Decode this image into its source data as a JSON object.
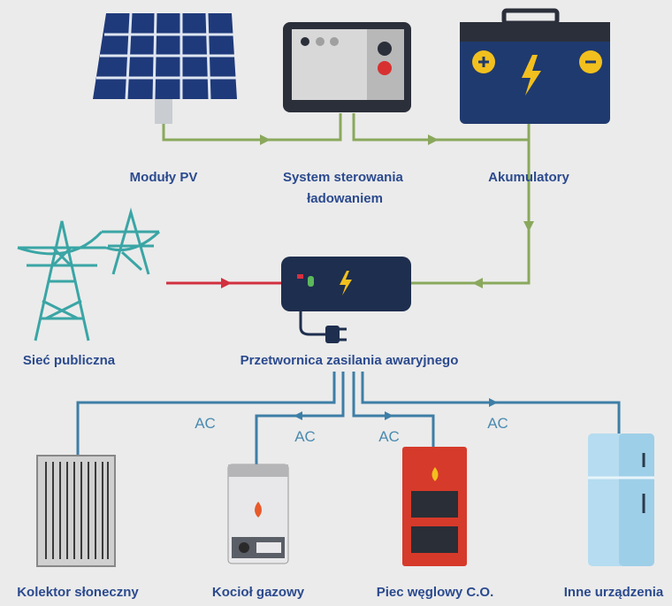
{
  "nodes": [
    {
      "label": "Moduły PV"
    },
    {
      "label": [
        "System sterowania",
        "ładowaniem"
      ]
    },
    {
      "label": "Akumulatory"
    },
    {
      "label": "Sieć publiczna"
    },
    {
      "label": "Przetwornica zasilania awaryjnego"
    },
    {
      "label": "Kolektor słoneczny"
    },
    {
      "label": "Kocioł gazowy"
    },
    {
      "label": "Piec węglowy C.O."
    },
    {
      "label": "Inne urządzenia"
    }
  ],
  "connections": [
    {
      "label": "AC"
    },
    {
      "label": "AC"
    },
    {
      "label": "AC"
    },
    {
      "label": "AC"
    }
  ]
}
